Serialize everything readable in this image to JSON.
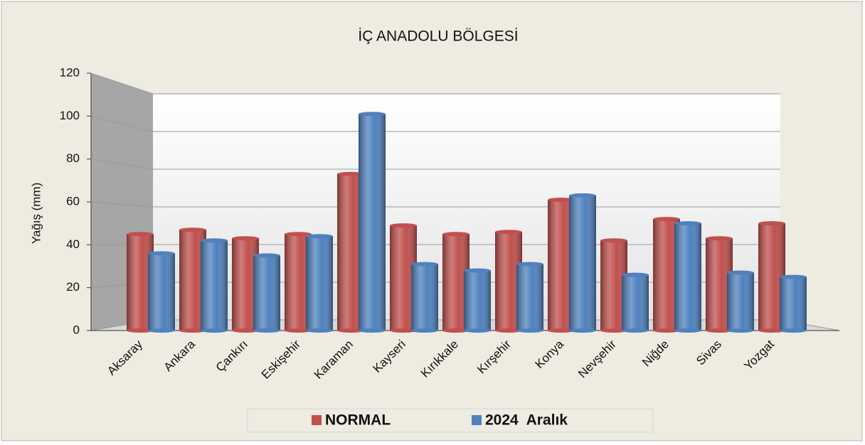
{
  "chart_data": {
    "type": "bar",
    "title": "İÇ ANADOLU BÖLGESİ",
    "y_label": "Yağış (mm)",
    "categories": [
      "Aksaray",
      "Ankara",
      "Çankırı",
      "Eskişehir",
      "Karaman",
      "Kayseri",
      "Kırıkkale",
      "Kırşehir",
      "Konya",
      "Nevşehir",
      "Niğde",
      "Sivas",
      "Yozgat"
    ],
    "series": [
      {
        "name": "NORMAL",
        "color": "#c0504d",
        "values": [
          45,
          47,
          43,
          45,
          73,
          49,
          45,
          46,
          61,
          42,
          52,
          43,
          50
        ]
      },
      {
        "name": "2024  Aralık",
        "color": "#4f81bd",
        "values": [
          36,
          42,
          35,
          44,
          101,
          31,
          28,
          31,
          63,
          26,
          50,
          27,
          25
        ]
      }
    ],
    "ylim": [
      0,
      120
    ],
    "yticks": [
      0,
      20,
      40,
      60,
      80,
      100,
      120
    ],
    "grid": true,
    "legend": "bottom"
  }
}
